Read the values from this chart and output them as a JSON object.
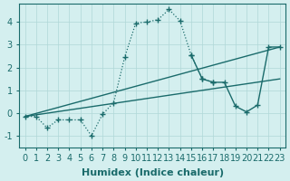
{
  "xlabel": "Humidex (Indice chaleur)",
  "bg_color": "#d4efef",
  "line_color": "#1a6b6b",
  "grid_color": "#b0d8d8",
  "ylim": [
    -1.5,
    4.8
  ],
  "xlim": [
    -0.5,
    23.5
  ],
  "yticks": [
    -1,
    0,
    1,
    2,
    3,
    4
  ],
  "xticks": [
    0,
    1,
    2,
    3,
    4,
    5,
    6,
    7,
    8,
    9,
    10,
    11,
    12,
    13,
    14,
    15,
    16,
    17,
    18,
    19,
    20,
    21,
    22,
    23
  ],
  "xticklabels": [
    "0",
    "1",
    "2",
    "3",
    "4",
    "5",
    "6",
    "7",
    "8",
    "9",
    "10",
    "11",
    "12",
    "13",
    "14",
    "15",
    "16",
    "17",
    "18",
    "19",
    "20",
    "21",
    "22",
    "23"
  ],
  "dotted_x": [
    0,
    1,
    2,
    3,
    4,
    5,
    6,
    7,
    8,
    9,
    10,
    11,
    12,
    13,
    14,
    15,
    16,
    17
  ],
  "dotted_y": [
    -0.15,
    -0.15,
    -0.65,
    -0.3,
    -0.3,
    -0.3,
    -1.0,
    -0.05,
    0.45,
    2.45,
    3.95,
    4.0,
    4.1,
    4.55,
    4.05,
    2.55,
    1.5,
    1.35
  ],
  "upper_line_x": [
    0,
    23
  ],
  "upper_line_y": [
    -0.15,
    2.9
  ],
  "lower_line_x": [
    0,
    23
  ],
  "lower_line_y": [
    -0.15,
    1.5
  ],
  "right_segment_x": [
    15,
    16,
    17,
    18,
    19,
    20,
    21,
    22,
    23
  ],
  "right_segment_y": [
    2.55,
    1.5,
    1.35,
    1.35,
    0.3,
    0.05,
    0.35,
    2.9,
    2.9
  ],
  "fontsize_label": 8,
  "fontsize_tick": 7
}
